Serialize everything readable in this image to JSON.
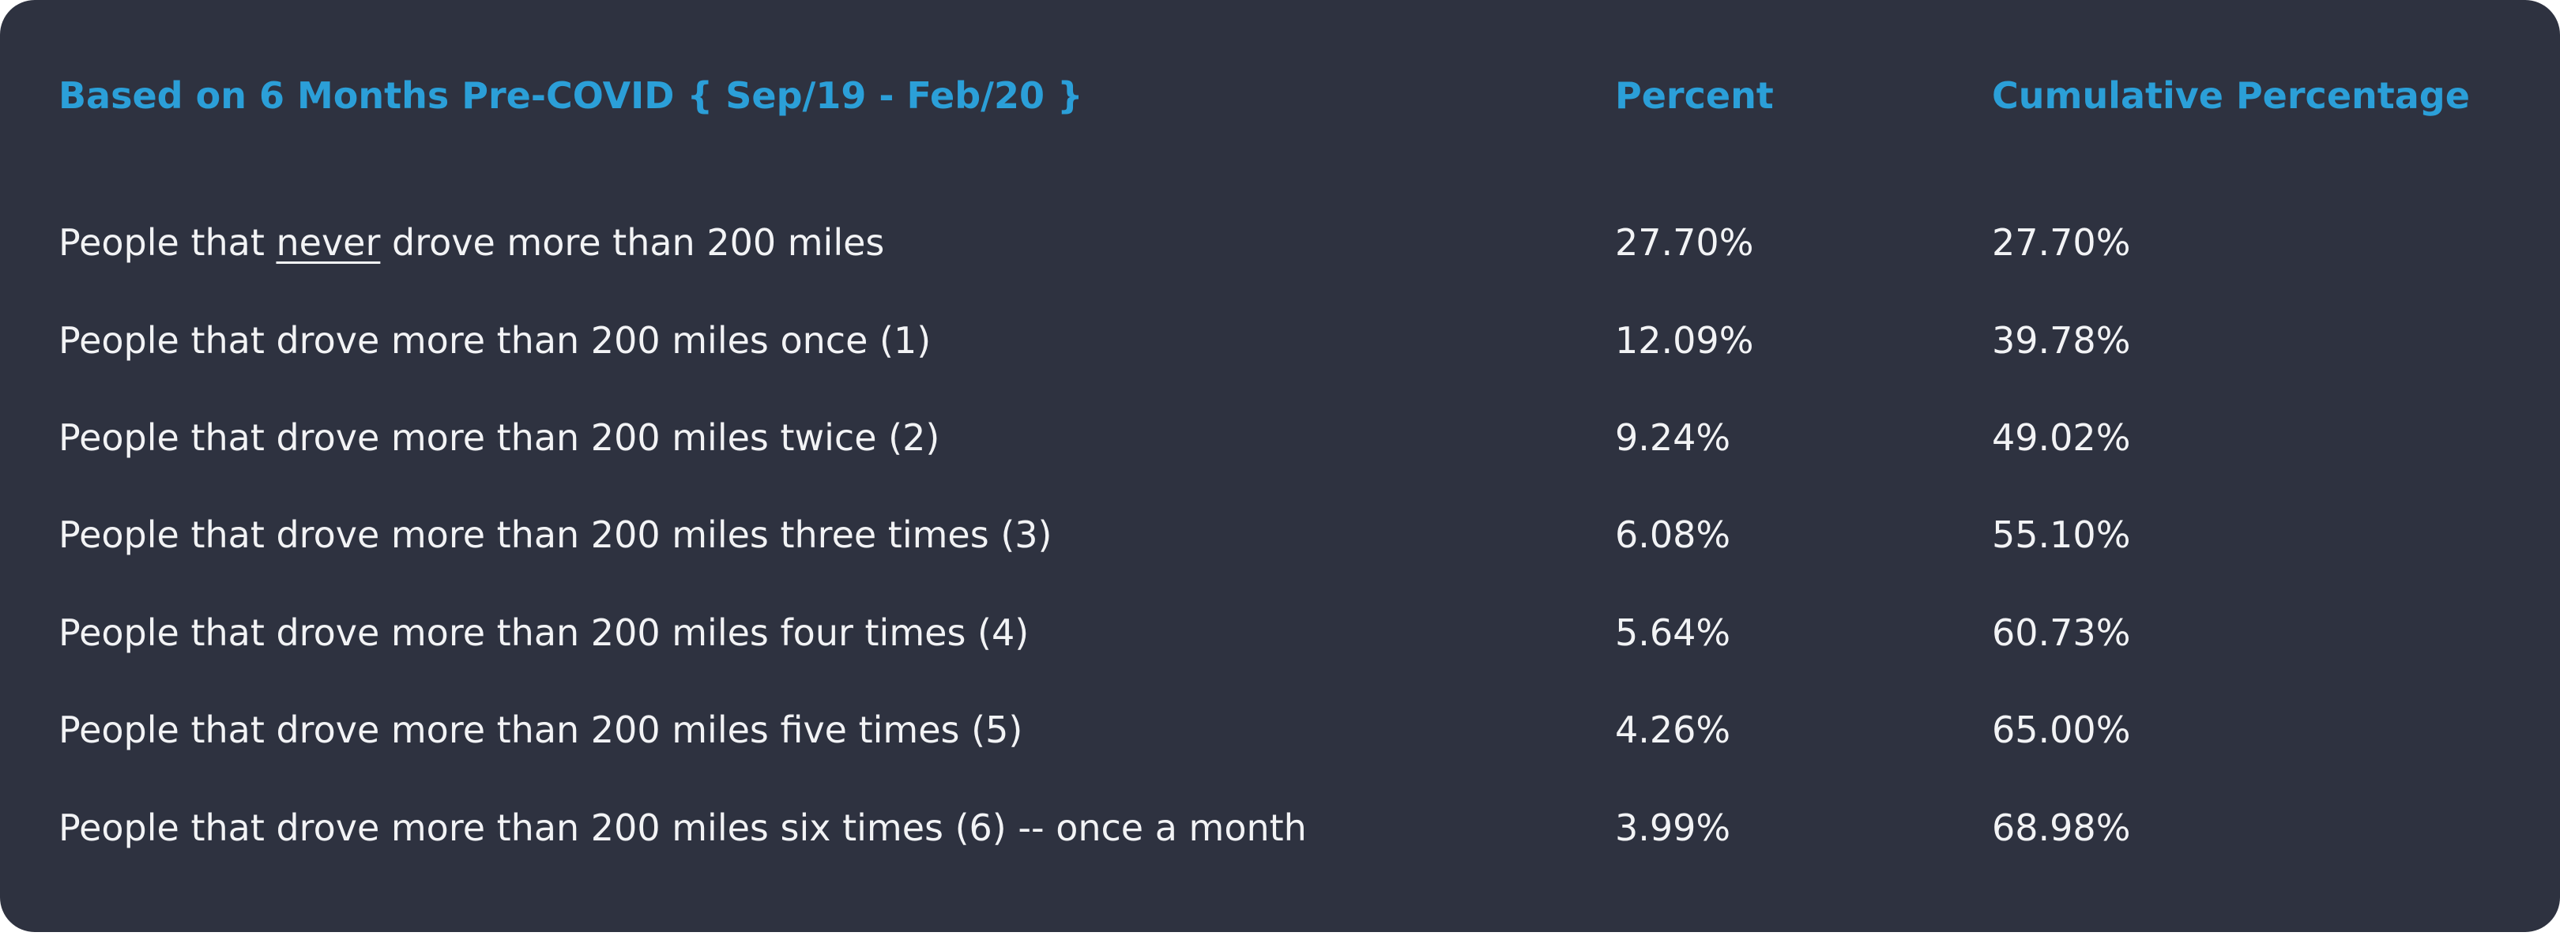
{
  "chart_data": {
    "type": "table",
    "columns": [
      "Based on 6 Months Pre-COVID  { Sep/19 - Feb/20 }",
      "Percent",
      "Cumulative Percentage"
    ],
    "rows": [
      {
        "label_before": "People that ",
        "label_emph": "never",
        "label_after": " drove more than 200 miles",
        "percent": "27.70%",
        "cumulative": "27.70%"
      },
      {
        "label": "People that drove more than 200 miles once (1)",
        "percent": "12.09%",
        "cumulative": "39.78%"
      },
      {
        "label": "People that drove more than 200 miles twice (2)",
        "percent": "9.24%",
        "cumulative": "49.02%"
      },
      {
        "label": "People that drove more than 200 miles three times (3)",
        "percent": "6.08%",
        "cumulative": "55.10%"
      },
      {
        "label": "People that drove more than 200 miles four times (4)",
        "percent": "5.64%",
        "cumulative": "60.73%"
      },
      {
        "label": "People that drove more than 200 miles five times (5)",
        "percent": "4.26%",
        "cumulative": "65.00%"
      },
      {
        "label": "People that drove more than 200 miles six times (6) -- once a month",
        "percent": "3.99%",
        "cumulative": "68.98%"
      }
    ],
    "colors": {
      "background": "#2e3240",
      "header": "#2b9fd8",
      "text": "#f2f3f5"
    }
  }
}
